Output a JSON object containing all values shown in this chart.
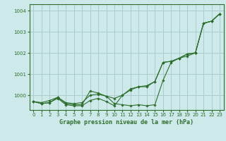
{
  "title": "Graphe pression niveau de la mer (hPa)",
  "bg_color": "#cee9ea",
  "grid_color": "#aacccc",
  "line_color": "#2d6e2d",
  "xlim": [
    -0.5,
    23.5
  ],
  "ylim": [
    999.3,
    1004.3
  ],
  "yticks": [
    1000,
    1001,
    1002,
    1003,
    1004
  ],
  "xticks": [
    0,
    1,
    2,
    3,
    4,
    5,
    6,
    7,
    8,
    9,
    10,
    11,
    12,
    13,
    14,
    15,
    16,
    17,
    18,
    19,
    20,
    21,
    22,
    23
  ],
  "series": [
    [
      999.7,
      999.65,
      999.75,
      999.9,
      999.65,
      999.6,
      999.65,
      1000.0,
      1000.05,
      999.95,
      999.85,
      1000.0,
      1000.25,
      1000.4,
      1000.45,
      1000.65,
      1001.55,
      1001.6,
      1001.75,
      1001.95,
      1002.0,
      1003.4,
      1003.5,
      1003.85
    ],
    [
      999.7,
      999.6,
      999.65,
      999.85,
      999.55,
      999.5,
      999.5,
      999.75,
      999.85,
      999.7,
      999.5,
      1000.0,
      1000.3,
      1000.4,
      1000.4,
      1000.65,
      1001.55,
      1001.6,
      1001.75,
      1001.95,
      1002.0,
      1003.4,
      1003.5,
      1003.85
    ],
    [
      999.7,
      999.6,
      999.65,
      999.9,
      999.6,
      999.55,
      999.55,
      1000.2,
      1000.1,
      999.95,
      999.6,
      999.55,
      999.5,
      999.55,
      999.5,
      999.55,
      1000.7,
      1001.55,
      1001.75,
      1001.85,
      1002.0,
      1003.4,
      1003.5,
      1003.85
    ]
  ]
}
